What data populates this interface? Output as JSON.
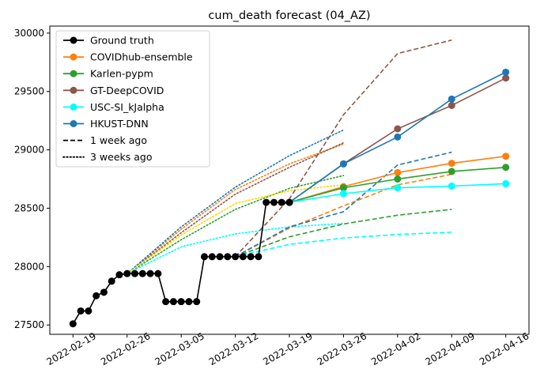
{
  "chart_data": {
    "type": "line",
    "title": "cum_death forecast (04_AZ)",
    "xlabel": "",
    "ylabel": "",
    "x_ticks": [
      "2022-02-19",
      "2022-02-26",
      "2022-03-05",
      "2022-03-12",
      "2022-03-19",
      "2022-03-26",
      "2022-04-02",
      "2022-04-09",
      "2022-04-16"
    ],
    "y_ticks": [
      27500,
      28000,
      28500,
      29000,
      29500,
      30000
    ],
    "xlim": [
      "2022-02-16",
      "2022-04-19"
    ],
    "ylim": [
      27420,
      30060
    ],
    "grid": false,
    "legend_position": "top-left",
    "colors": {
      "ground_truth": "#000000",
      "ensemble": "#ff7f0e",
      "karlen": "#2ca02c",
      "deepcovid": "#8c564b",
      "usc": "#00ffff",
      "hkust": "#1f77b4",
      "extra_dotted": "#ffd700"
    },
    "legend": [
      {
        "label": "Ground truth",
        "color": "#000000",
        "style": "solid",
        "marker": true
      },
      {
        "label": "COVIDhub-ensemble",
        "color": "#ff7f0e",
        "style": "solid",
        "marker": true
      },
      {
        "label": "Karlen-pypm",
        "color": "#2ca02c",
        "style": "solid",
        "marker": true
      },
      {
        "label": "GT-DeepCOVID",
        "color": "#8c564b",
        "style": "solid",
        "marker": true
      },
      {
        "label": "USC-SI_kJalpha",
        "color": "#00ffff",
        "style": "solid",
        "marker": true
      },
      {
        "label": "HKUST-DNN",
        "color": "#1f77b4",
        "style": "solid",
        "marker": true
      },
      {
        "label": "1 week ago",
        "color": "#000000",
        "style": "dashed",
        "marker": false
      },
      {
        "label": "3 weeks ago",
        "color": "#000000",
        "style": "dotted",
        "marker": false
      }
    ],
    "ground_truth": {
      "x": [
        "2022-02-19",
        "2022-02-20",
        "2022-02-21",
        "2022-02-22",
        "2022-02-23",
        "2022-02-24",
        "2022-02-25",
        "2022-02-26",
        "2022-02-27",
        "2022-02-28",
        "2022-03-01",
        "2022-03-02",
        "2022-03-03",
        "2022-03-04",
        "2022-03-05",
        "2022-03-06",
        "2022-03-07",
        "2022-03-08",
        "2022-03-09",
        "2022-03-10",
        "2022-03-11",
        "2022-03-12",
        "2022-03-13",
        "2022-03-14",
        "2022-03-15",
        "2022-03-16",
        "2022-03-17",
        "2022-03-18",
        "2022-03-19"
      ],
      "y": [
        27510,
        27620,
        27620,
        27750,
        27780,
        27875,
        27930,
        27940,
        27940,
        27940,
        27940,
        27940,
        27700,
        27700,
        27700,
        27700,
        27700,
        28085,
        28085,
        28085,
        28085,
        28085,
        28085,
        28085,
        28085,
        28550,
        28550,
        28550,
        28550
      ]
    },
    "current_forecasts": [
      {
        "name": "COVIDhub-ensemble",
        "color": "#ff7f0e",
        "x": [
          "2022-03-19",
          "2022-03-26",
          "2022-04-02",
          "2022-04-09",
          "2022-04-16"
        ],
        "y": [
          28550,
          28685,
          28805,
          28885,
          28945
        ]
      },
      {
        "name": "Karlen-pypm",
        "color": "#2ca02c",
        "x": [
          "2022-03-19",
          "2022-03-26",
          "2022-04-02",
          "2022-04-09",
          "2022-04-16"
        ],
        "y": [
          28550,
          28675,
          28750,
          28815,
          28850
        ]
      },
      {
        "name": "GT-DeepCOVID",
        "color": "#8c564b",
        "x": [
          "2022-03-19",
          "2022-03-26",
          "2022-04-02",
          "2022-04-09",
          "2022-04-16"
        ],
        "y": [
          28550,
          28880,
          29180,
          29380,
          29615
        ]
      },
      {
        "name": "USC-SI_kJalpha",
        "color": "#00ffff",
        "x": [
          "2022-03-19",
          "2022-03-26",
          "2022-04-02",
          "2022-04-09",
          "2022-04-16"
        ],
        "y": [
          28550,
          28625,
          28675,
          28690,
          28710
        ]
      },
      {
        "name": "HKUST-DNN",
        "color": "#1f77b4",
        "x": [
          "2022-03-19",
          "2022-03-26",
          "2022-04-02",
          "2022-04-09",
          "2022-04-16"
        ],
        "y": [
          28550,
          28880,
          29110,
          29435,
          29665
        ]
      }
    ],
    "week1_forecasts": [
      {
        "name": "COVIDhub-ensemble",
        "color": "#ff7f0e",
        "x": [
          "2022-03-12",
          "2022-03-19",
          "2022-03-26",
          "2022-04-02",
          "2022-04-09"
        ],
        "y": [
          28085,
          28330,
          28520,
          28700,
          28790
        ]
      },
      {
        "name": "Karlen-pypm",
        "color": "#2ca02c",
        "x": [
          "2022-03-12",
          "2022-03-19",
          "2022-03-26",
          "2022-04-02",
          "2022-04-09"
        ],
        "y": [
          28085,
          28255,
          28365,
          28440,
          28490
        ]
      },
      {
        "name": "GT-DeepCOVID",
        "color": "#8c564b",
        "x": [
          "2022-03-12",
          "2022-03-19",
          "2022-03-26",
          "2022-04-02",
          "2022-04-09"
        ],
        "y": [
          28085,
          28580,
          29300,
          29825,
          29940
        ]
      },
      {
        "name": "USC-SI_kJalpha",
        "color": "#00ffff",
        "x": [
          "2022-03-12",
          "2022-03-19",
          "2022-03-26",
          "2022-04-02",
          "2022-04-09"
        ],
        "y": [
          28085,
          28190,
          28245,
          28275,
          28295
        ]
      },
      {
        "name": "HKUST-DNN",
        "color": "#1f77b4",
        "x": [
          "2022-03-12",
          "2022-03-19",
          "2022-03-26",
          "2022-04-02",
          "2022-04-09"
        ],
        "y": [
          28085,
          28340,
          28470,
          28870,
          28980
        ]
      }
    ],
    "week3_forecasts": [
      {
        "name": "COVIDhub-ensemble",
        "color": "#ff7f0e",
        "x": [
          "2022-02-26",
          "2022-03-05",
          "2022-03-12",
          "2022-03-19",
          "2022-03-26"
        ],
        "y": [
          27940,
          28320,
          28660,
          28880,
          29050
        ]
      },
      {
        "name": "Karlen-pypm",
        "color": "#2ca02c",
        "x": [
          "2022-02-26",
          "2022-03-05",
          "2022-03-12",
          "2022-03-19",
          "2022-03-26"
        ],
        "y": [
          27940,
          28230,
          28490,
          28670,
          28780
        ]
      },
      {
        "name": "GT-DeepCOVID",
        "color": "#8c564b",
        "x": [
          "2022-02-26",
          "2022-03-05",
          "2022-03-12",
          "2022-03-19",
          "2022-03-26"
        ],
        "y": [
          27940,
          28290,
          28620,
          28850,
          29060
        ]
      },
      {
        "name": "USC-SI_kJalpha",
        "color": "#00ffff",
        "x": [
          "2022-02-26",
          "2022-03-05",
          "2022-03-12",
          "2022-03-19",
          "2022-03-26"
        ],
        "y": [
          27940,
          28170,
          28280,
          28340,
          28370
        ]
      },
      {
        "name": "HKUST-DNN",
        "color": "#1f77b4",
        "x": [
          "2022-02-26",
          "2022-03-05",
          "2022-03-12",
          "2022-03-19",
          "2022-03-26"
        ],
        "y": [
          27940,
          28340,
          28680,
          28950,
          29170
        ]
      },
      {
        "name": "",
        "color": "#ffd700",
        "x": [
          "2022-02-26",
          "2022-03-05",
          "2022-03-12",
          "2022-03-19",
          "2022-03-26"
        ],
        "y": [
          27940,
          28270,
          28540,
          28650,
          28700
        ]
      }
    ]
  }
}
